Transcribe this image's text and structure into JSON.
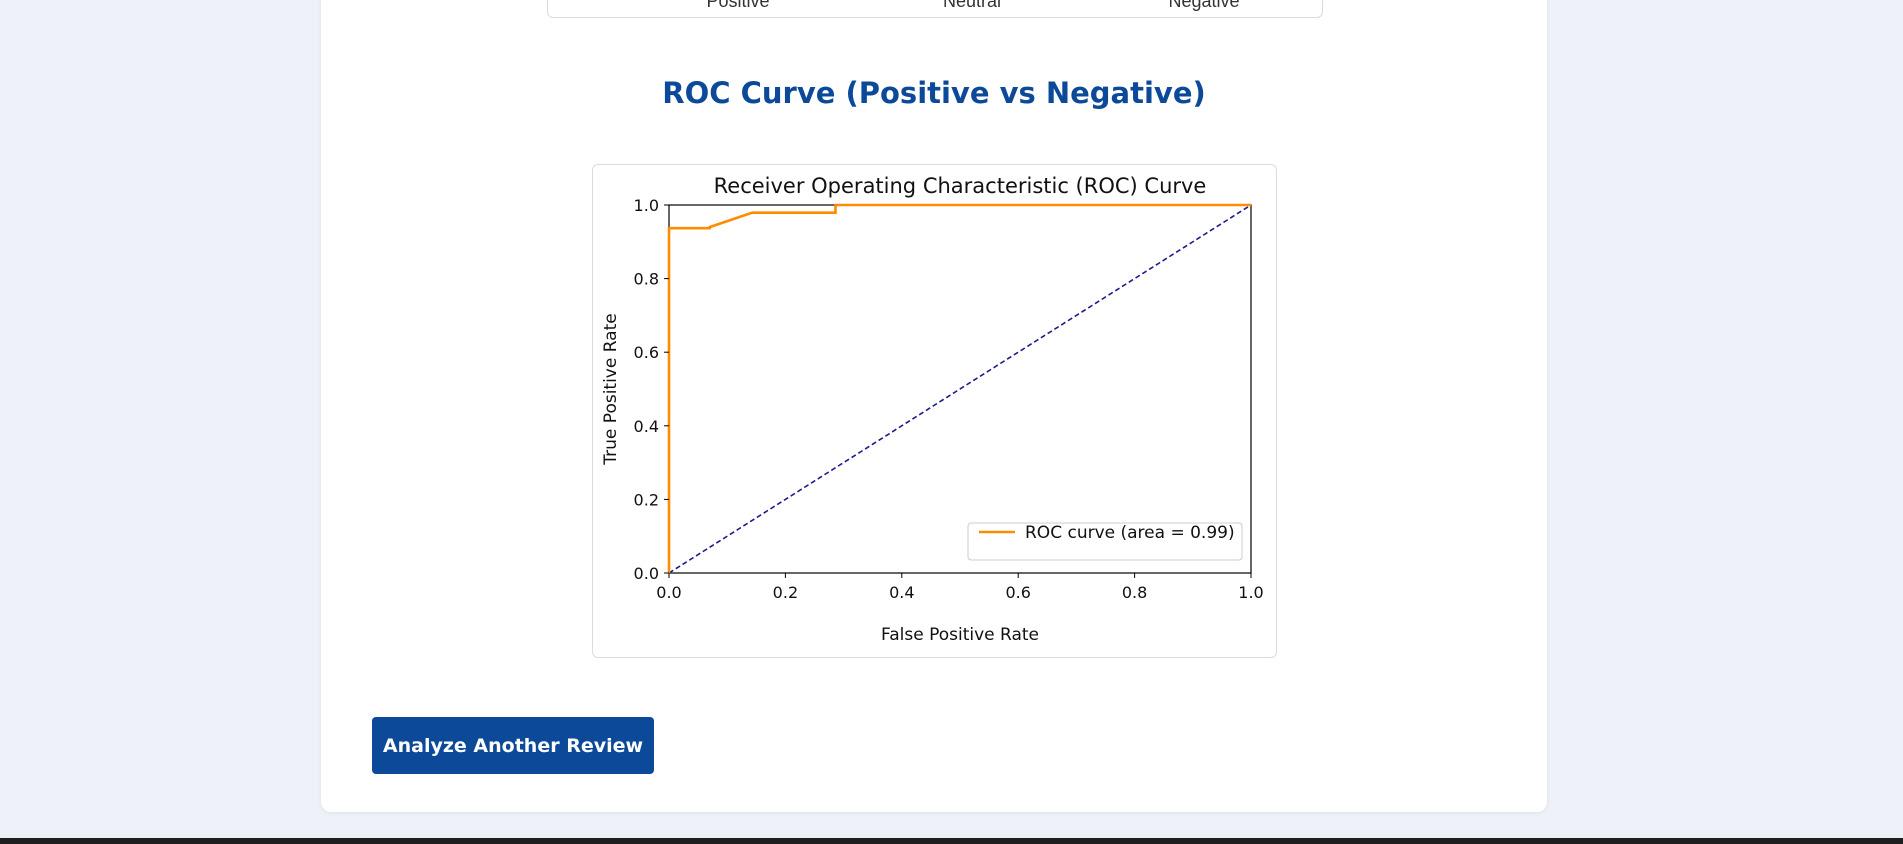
{
  "confusion_matrix": {
    "column_labels": [
      "Positive",
      "Neutral",
      "Negative"
    ]
  },
  "roc_section": {
    "title": "ROC Curve (Positive vs Negative)"
  },
  "chart_data": {
    "type": "line",
    "title": "Receiver Operating Characteristic (ROC) Curve",
    "xlabel": "False Positive Rate",
    "ylabel": "True Positive Rate",
    "xlim": [
      0.0,
      1.0
    ],
    "ylim": [
      0.0,
      1.0
    ],
    "xticks": [
      0.0,
      0.2,
      0.4,
      0.6,
      0.8,
      1.0
    ],
    "yticks": [
      0.0,
      0.2,
      0.4,
      0.6,
      0.8,
      1.0
    ],
    "tick_labels": [
      "0.0",
      "0.2",
      "0.4",
      "0.6",
      "0.8",
      "1.0"
    ],
    "grid": false,
    "legend_position": "lower-right",
    "series": [
      {
        "name": "ROC curve (area = 0.99)",
        "color": "#ff8c00",
        "style": "solid",
        "x": [
          0.0,
          0.0,
          0.07,
          0.07,
          0.143,
          0.286,
          0.286,
          1.0
        ],
        "y": [
          0.0,
          0.937,
          0.937,
          0.94,
          0.979,
          0.979,
          1.0,
          1.0
        ]
      },
      {
        "color": "#1c1c8c",
        "style": "dashed",
        "x": [
          0.0,
          1.0
        ],
        "y": [
          0.0,
          1.0
        ]
      }
    ]
  },
  "actions": {
    "analyze_again_label": "Analyze Another Review"
  }
}
